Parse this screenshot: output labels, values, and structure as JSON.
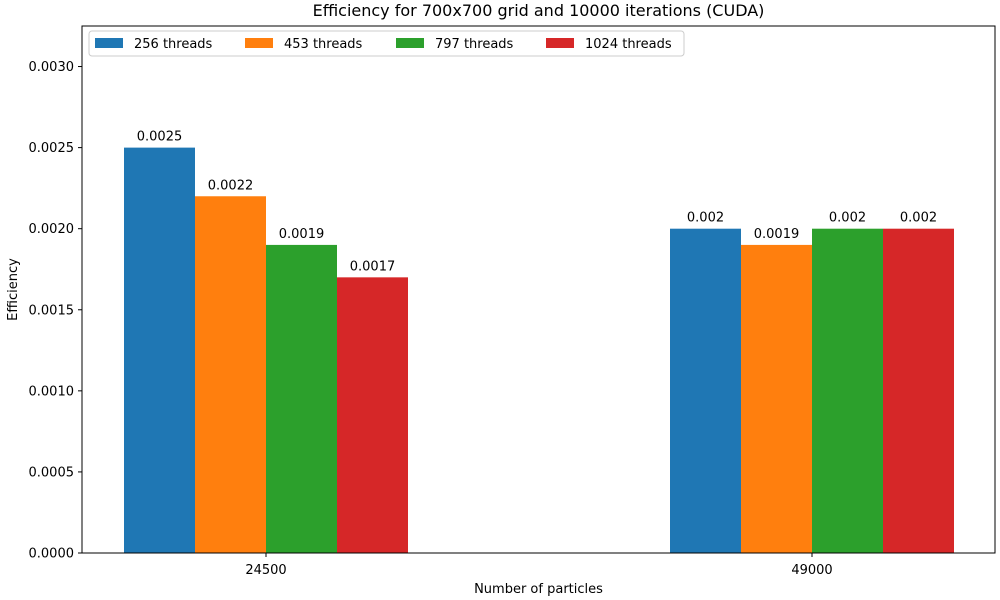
{
  "chart_data": {
    "type": "bar",
    "title": "Efficiency for 700x700 grid and 10000 iterations (CUDA)",
    "xlabel": "Number of particles",
    "ylabel": "Efficiency",
    "categories": [
      "24500",
      "49000"
    ],
    "series": [
      {
        "name": "256 threads",
        "color": "#1f77b4",
        "values": [
          0.0025,
          0.002
        ],
        "labels": [
          "0.0025",
          "0.002"
        ]
      },
      {
        "name": "453 threads",
        "color": "#ff7f0e",
        "values": [
          0.0022,
          0.0019
        ],
        "labels": [
          "0.0022",
          "0.0019"
        ]
      },
      {
        "name": "797 threads",
        "color": "#2ca02c",
        "values": [
          0.0019,
          0.002
        ],
        "labels": [
          "0.0019",
          "0.002"
        ]
      },
      {
        "name": "1024 threads",
        "color": "#d62728",
        "values": [
          0.0017,
          0.002
        ],
        "labels": [
          "0.0017",
          "0.002"
        ]
      }
    ],
    "ylim": [
      0,
      0.00325
    ],
    "yticks": [
      0.0,
      0.0005,
      0.001,
      0.0015,
      0.002,
      0.0025,
      0.003
    ],
    "ytick_labels": [
      "0.0000",
      "0.0005",
      "0.0010",
      "0.0015",
      "0.0020",
      "0.0025",
      "0.0030"
    ],
    "grid": false,
    "legend_position": "top-left"
  }
}
